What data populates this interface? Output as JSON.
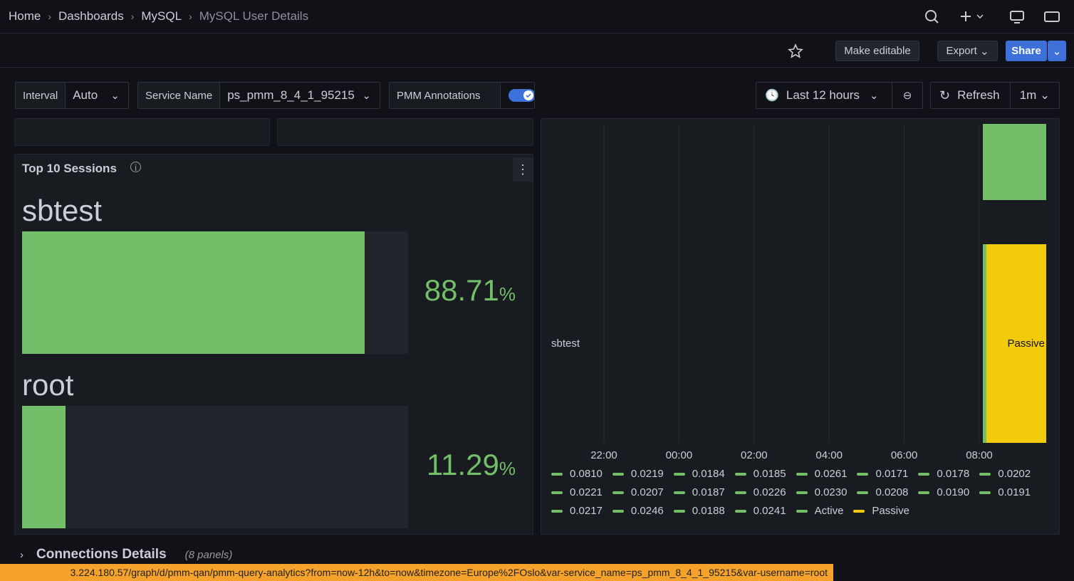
{
  "breadcrumbs": [
    "Home",
    "Dashboards",
    "MySQL",
    "MySQL User Details"
  ],
  "toolbar": {
    "make_editable": "Make editable",
    "export": "Export",
    "share": "Share"
  },
  "variables": [
    {
      "label": "Interval",
      "value": "Auto"
    },
    {
      "label": "Service Name",
      "value": "ps_pmm_8_4_1_95215"
    },
    {
      "label": "PMM Annotations"
    }
  ],
  "time_picker": {
    "range": "Last 12 hours",
    "refresh": "Refresh",
    "interval": "1m"
  },
  "top_sessions": {
    "title": "Top 10 Sessions",
    "unit": "%",
    "items": [
      {
        "name": "sbtest",
        "value": 88.71
      },
      {
        "name": "root",
        "value": 11.29
      }
    ]
  },
  "timeline": {
    "row_label": "sbtest",
    "state_label": "Passive",
    "x_ticks": [
      "22:00",
      "00:00",
      "02:00",
      "04:00",
      "06:00",
      "08:00"
    ],
    "legend": [
      {
        "label": "0.0810",
        "color": "#73bf69"
      },
      {
        "label": "0.0219",
        "color": "#73bf69"
      },
      {
        "label": "0.0184",
        "color": "#73bf69"
      },
      {
        "label": "0.0185",
        "color": "#73bf69"
      },
      {
        "label": "0.0261",
        "color": "#73bf69"
      },
      {
        "label": "0.0171",
        "color": "#73bf69"
      },
      {
        "label": "0.0178",
        "color": "#73bf69"
      },
      {
        "label": "0.0202",
        "color": "#73bf69"
      },
      {
        "label": "0.0221",
        "color": "#73bf69"
      },
      {
        "label": "0.0207",
        "color": "#73bf69"
      },
      {
        "label": "0.0187",
        "color": "#73bf69"
      },
      {
        "label": "0.0226",
        "color": "#73bf69"
      },
      {
        "label": "0.0230",
        "color": "#73bf69"
      },
      {
        "label": "0.0208",
        "color": "#73bf69"
      },
      {
        "label": "0.0190",
        "color": "#73bf69"
      },
      {
        "label": "0.0191",
        "color": "#73bf69"
      },
      {
        "label": "0.0217",
        "color": "#73bf69"
      },
      {
        "label": "0.0246",
        "color": "#73bf69"
      },
      {
        "label": "0.0188",
        "color": "#73bf69"
      },
      {
        "label": "0.0241",
        "color": "#73bf69"
      },
      {
        "label": "Active",
        "color": "#73bf69"
      },
      {
        "label": "Passive",
        "color": "#f2cc0c"
      }
    ]
  },
  "row": {
    "title": "Connections Details",
    "count": "(8 panels)"
  },
  "status_url": "3.224.180.57/graph/d/pmm-qan/pmm-query-analytics?from=now-12h&to=now&timezone=Europe%2FOslo&var-service_name=ps_pmm_8_4_1_95215&var-username=root"
}
